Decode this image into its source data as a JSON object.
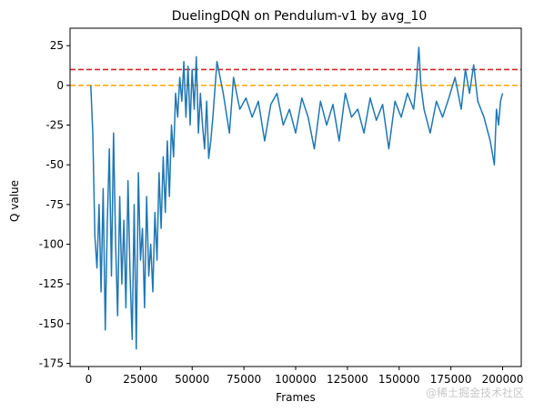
{
  "chart_data": {
    "type": "line",
    "title": "DuelingDQN on Pendulum-v1 by avg_10",
    "xlabel": "Frames",
    "ylabel": "Q value",
    "xlim": [
      -9000,
      209000
    ],
    "ylim": [
      -177,
      36
    ],
    "x_ticks": [
      0,
      25000,
      50000,
      75000,
      100000,
      125000,
      150000,
      175000,
      200000
    ],
    "y_ticks": [
      -175,
      -150,
      -125,
      -100,
      -75,
      -50,
      -25,
      0,
      25
    ],
    "reference_lines": [
      {
        "y": 10,
        "color": "#d62728",
        "style": "dashed"
      },
      {
        "y": 0,
        "color": "#ffa500",
        "style": "dashed"
      }
    ],
    "grid": false,
    "legend": "none",
    "series": [
      {
        "color": "#1f77b4",
        "x": [
          1000,
          2000,
          3000,
          4000,
          5000,
          6000,
          7000,
          8000,
          9000,
          10000,
          11000,
          12000,
          13000,
          14000,
          15000,
          16000,
          17000,
          18000,
          19000,
          20000,
          21000,
          22000,
          23000,
          24000,
          25000,
          26000,
          27000,
          28000,
          29000,
          30000,
          31000,
          32000,
          33000,
          34000,
          35000,
          36000,
          37000,
          38000,
          39000,
          40000,
          41000,
          42000,
          43000,
          44000,
          45000,
          46000,
          47000,
          48000,
          49000,
          50000,
          51000,
          52000,
          53000,
          54000,
          55000,
          56000,
          57000,
          58000,
          59000,
          60000,
          62000,
          65000,
          68000,
          70000,
          73000,
          76000,
          79000,
          82000,
          85000,
          88000,
          91000,
          94000,
          97000,
          100000,
          103000,
          106000,
          109000,
          112000,
          115000,
          118000,
          121000,
          124000,
          127000,
          130000,
          133000,
          136000,
          139000,
          142000,
          145000,
          148000,
          151000,
          154000,
          157000,
          158500,
          159500,
          160500,
          162000,
          165000,
          168000,
          171000,
          174000,
          177000,
          180000,
          182000,
          184000,
          186000,
          188000,
          191000,
          194000,
          196000,
          197000,
          198000,
          199000,
          200000
        ],
        "values": [
          0,
          -30,
          -95,
          -115,
          -75,
          -130,
          -65,
          -154,
          -85,
          -40,
          -120,
          -30,
          -100,
          -145,
          -70,
          -125,
          -85,
          -140,
          -60,
          -120,
          -160,
          -75,
          -166,
          -55,
          -110,
          -90,
          -140,
          -70,
          -120,
          -100,
          -130,
          -80,
          -110,
          -55,
          -90,
          -45,
          -80,
          -35,
          -70,
          -25,
          -45,
          -5,
          -20,
          5,
          -10,
          15,
          -20,
          12,
          -25,
          10,
          -15,
          18,
          -30,
          -5,
          -25,
          -40,
          -10,
          -46,
          -35,
          -20,
          15,
          -5,
          -30,
          5,
          -15,
          -8,
          -20,
          -10,
          -35,
          -12,
          -5,
          -25,
          -15,
          -30,
          -8,
          -20,
          -40,
          -10,
          -25,
          -12,
          -35,
          -5,
          -20,
          -15,
          -30,
          -8,
          -22,
          -12,
          -40,
          -10,
          -20,
          -5,
          -15,
          5,
          24,
          0,
          -15,
          -30,
          -10,
          -20,
          -8,
          5,
          -15,
          10,
          -5,
          13,
          -10,
          -20,
          -35,
          -50,
          -15,
          -25,
          -10,
          -5
        ]
      }
    ]
  },
  "watermark": "@稀土掘金技术社区"
}
